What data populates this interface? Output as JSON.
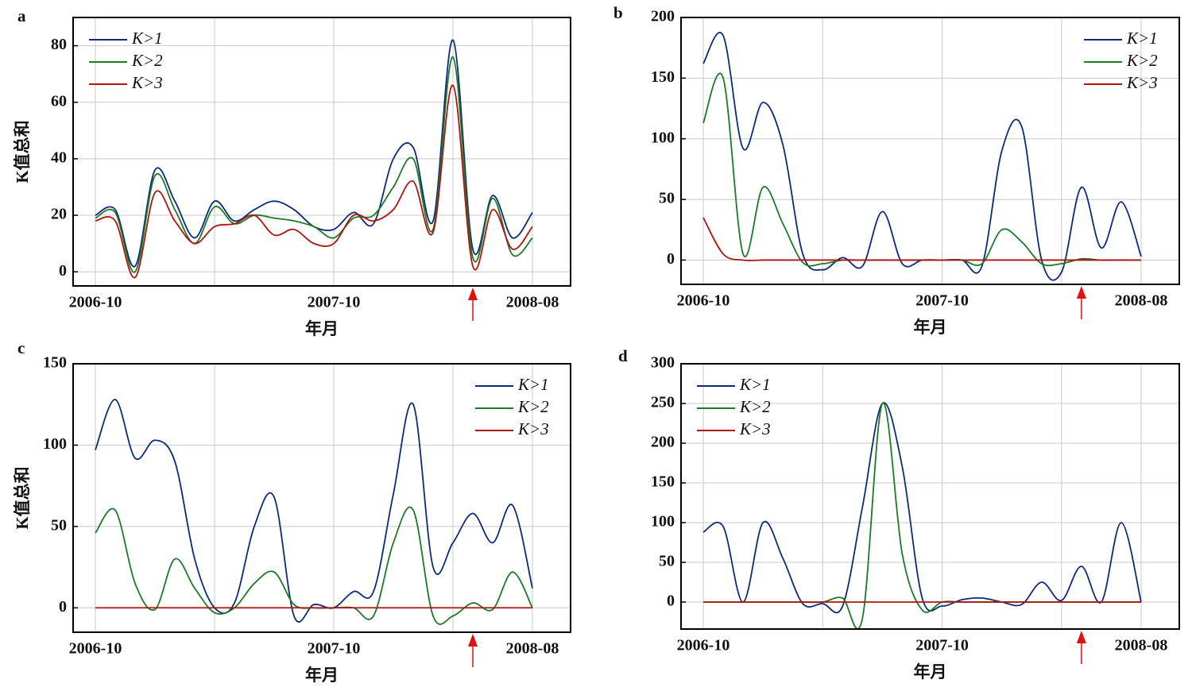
{
  "chart_data": [
    {
      "type": "line",
      "label": "a",
      "xlabel": "年月",
      "ylabel": "K值总和",
      "legend": "upper left",
      "grid": true,
      "categories": [
        "2006-10",
        null,
        null,
        null,
        null,
        null,
        null,
        null,
        null,
        null,
        null,
        null,
        "2007-10",
        null,
        null,
        null,
        null,
        null,
        null,
        null,
        null,
        null,
        "2008-08"
      ],
      "ylim": [
        -5,
        90
      ],
      "yticks": [
        0,
        20,
        40,
        60,
        80
      ],
      "series": [
        {
          "name": "K>1",
          "color": "#0b2a7d",
          "values": [
            20,
            22,
            2,
            36,
            25,
            12,
            25,
            18,
            22,
            25,
            22,
            16,
            15,
            21,
            17,
            40,
            44,
            18,
            82,
            8,
            27,
            12,
            21
          ]
        },
        {
          "name": "K>2",
          "color": "#1b7a26",
          "values": [
            19,
            21,
            0,
            34,
            22,
            10,
            23,
            17,
            20,
            19,
            18,
            16,
            12,
            19,
            20,
            30,
            40,
            15,
            76,
            5,
            26,
            6,
            12
          ]
        },
        {
          "name": "K>3",
          "color": "#b0140f",
          "values": [
            18,
            18,
            -2,
            28,
            18,
            10,
            16,
            17,
            20,
            13,
            15,
            10,
            10,
            20,
            18,
            22,
            32,
            14,
            66,
            2,
            22,
            8,
            16
          ]
        }
      ]
    },
    {
      "type": "line",
      "label": "b",
      "xlabel": "年月",
      "legend": "upper right",
      "grid": true,
      "categories": [
        "2006-10",
        null,
        null,
        null,
        null,
        null,
        null,
        null,
        null,
        null,
        null,
        null,
        "2007-10",
        null,
        null,
        null,
        null,
        null,
        null,
        null,
        null,
        null,
        "2008-08"
      ],
      "ylim": [
        -20,
        200
      ],
      "yticks": [
        0,
        50,
        100,
        150,
        200
      ],
      "series": [
        {
          "name": "K>1",
          "color": "#0b2a7d",
          "values": [
            162,
            185,
            92,
            130,
            95,
            5,
            -8,
            2,
            -5,
            40,
            -3,
            0,
            0,
            0,
            -5,
            90,
            110,
            0,
            -10,
            60,
            10,
            48,
            3
          ]
        },
        {
          "name": "K>2",
          "color": "#1b7a26",
          "values": [
            113,
            150,
            5,
            60,
            30,
            -2,
            -3,
            0,
            0,
            0,
            0,
            0,
            0,
            0,
            -3,
            25,
            15,
            -3,
            -3,
            1,
            0,
            0,
            0
          ]
        },
        {
          "name": "K>3",
          "color": "#b0140f",
          "values": [
            35,
            5,
            0,
            0,
            0,
            0,
            0,
            0,
            0,
            0,
            0,
            0,
            0,
            0,
            0,
            0,
            0,
            0,
            0,
            0,
            0,
            0,
            0
          ]
        }
      ]
    },
    {
      "type": "line",
      "label": "c",
      "xlabel": "年月",
      "ylabel": "K值总和",
      "legend": "upper right",
      "grid": true,
      "categories": [
        "2006-10",
        null,
        null,
        null,
        null,
        null,
        null,
        null,
        null,
        null,
        null,
        null,
        "2007-10",
        null,
        null,
        null,
        null,
        null,
        null,
        null,
        null,
        null,
        "2008-08"
      ],
      "ylim": [
        -15,
        150
      ],
      "yticks": [
        0,
        50,
        100,
        150
      ],
      "series": [
        {
          "name": "K>1",
          "color": "#0b2a7d",
          "values": [
            97,
            128,
            92,
            103,
            90,
            30,
            0,
            3,
            50,
            68,
            -5,
            2,
            0,
            10,
            10,
            70,
            125,
            25,
            40,
            58,
            40,
            63,
            12
          ]
        },
        {
          "name": "K>2",
          "color": "#1b7a26",
          "values": [
            46,
            60,
            15,
            -1,
            30,
            12,
            -3,
            0,
            15,
            22,
            2,
            0,
            0,
            0,
            -5,
            40,
            60,
            -5,
            -5,
            3,
            -1,
            22,
            0
          ]
        },
        {
          "name": "K>3",
          "color": "#b0140f",
          "values": [
            0,
            0,
            0,
            0,
            0,
            0,
            0,
            0,
            0,
            0,
            0,
            0,
            0,
            0,
            0,
            0,
            0,
            0,
            0,
            0,
            0,
            0,
            0
          ]
        }
      ]
    },
    {
      "type": "line",
      "label": "d",
      "xlabel": "年月",
      "legend": "upper left",
      "grid": true,
      "categories": [
        "2006-10",
        null,
        null,
        null,
        null,
        null,
        null,
        null,
        null,
        null,
        null,
        null,
        "2007-10",
        null,
        null,
        null,
        null,
        null,
        null,
        null,
        null,
        null,
        "2008-08"
      ],
      "ylim": [
        -34,
        300
      ],
      "yticks": [
        0,
        50,
        100,
        150,
        200,
        250,
        300
      ],
      "series": [
        {
          "name": "K>1",
          "color": "#0b2a7d",
          "values": [
            88,
            95,
            0,
            100,
            55,
            -2,
            -2,
            -5,
            120,
            250,
            170,
            5,
            -5,
            3,
            5,
            0,
            -3,
            25,
            2,
            45,
            0,
            100,
            0
          ]
        },
        {
          "name": "K>2",
          "color": "#1b7a26",
          "values": [
            0,
            0,
            0,
            0,
            0,
            0,
            0,
            5,
            -20,
            250,
            60,
            -10,
            0,
            0,
            0,
            0,
            0,
            0,
            0,
            0,
            0,
            0,
            0
          ]
        },
        {
          "name": "K>3",
          "color": "#b0140f",
          "values": [
            0,
            0,
            0,
            0,
            0,
            0,
            0,
            0,
            0,
            0,
            0,
            0,
            0,
            0,
            0,
            0,
            0,
            0,
            0,
            0,
            0,
            0,
            0
          ]
        }
      ]
    }
  ]
}
